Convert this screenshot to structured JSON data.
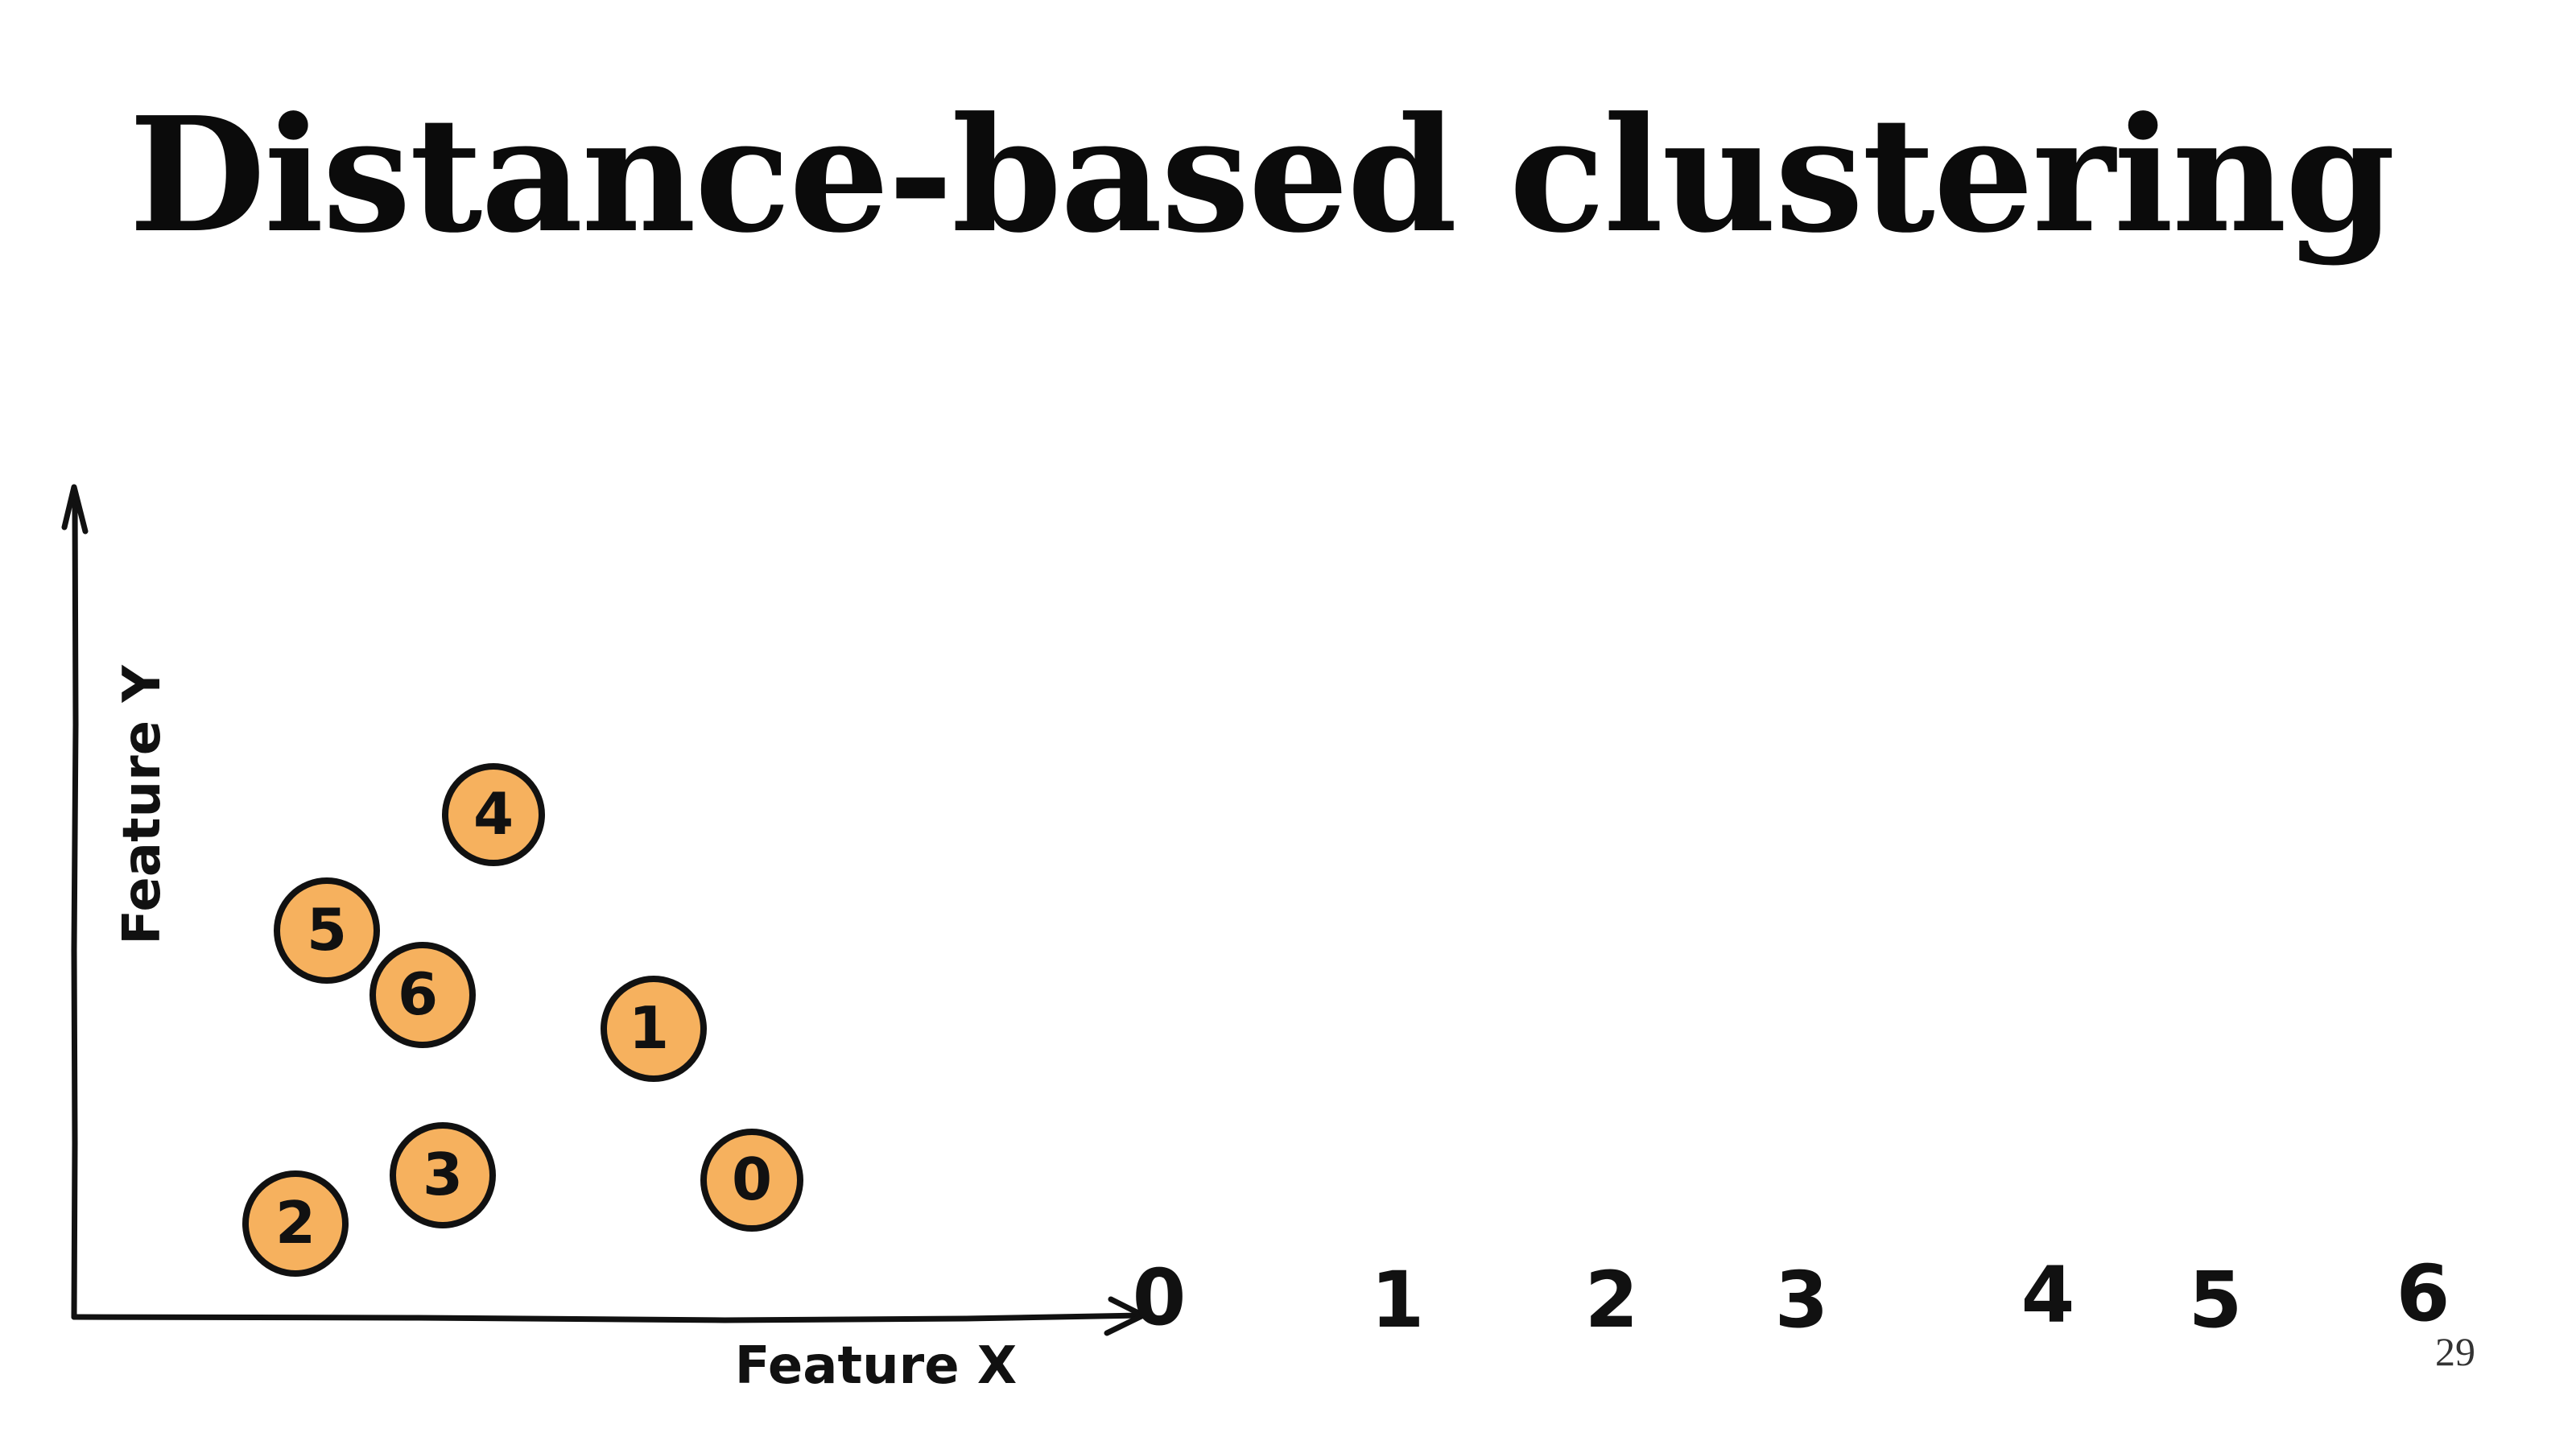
{
  "slide": {
    "title": "Distance-based clustering",
    "page_number": "29"
  },
  "diagram": {
    "x_axis_label": "Feature X",
    "y_axis_label": "Feature Y",
    "point_color": "#F6B15E",
    "outline_color": "#111111",
    "points": [
      {
        "label": "4"
      },
      {
        "label": "5"
      },
      {
        "label": "6"
      },
      {
        "label": "1"
      },
      {
        "label": "3"
      },
      {
        "label": "0"
      },
      {
        "label": "2"
      }
    ],
    "order_row": [
      "0",
      "1",
      "2",
      "3",
      "4",
      "5",
      "6"
    ]
  }
}
